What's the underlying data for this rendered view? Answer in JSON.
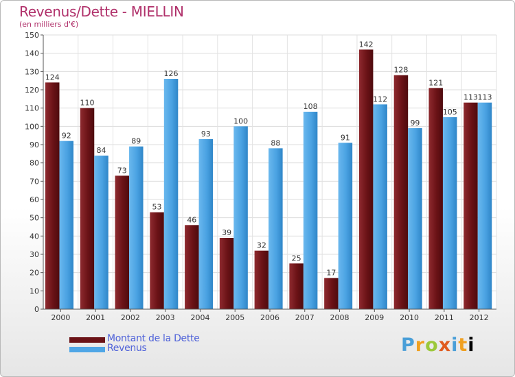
{
  "chart_data": {
    "type": "bar",
    "title": "Revenus/Dette - MIELLIN",
    "subtitle": "(en milliers d'€)",
    "categories": [
      "2000",
      "2001",
      "2002",
      "2003",
      "2004",
      "2005",
      "2006",
      "2007",
      "2008",
      "2009",
      "2010",
      "2011",
      "2012"
    ],
    "series": [
      {
        "name": "Montant de la Dette",
        "color": "#7a1a1e",
        "values": [
          124,
          110,
          73,
          53,
          46,
          39,
          32,
          25,
          17,
          142,
          128,
          121,
          113
        ]
      },
      {
        "name": "Revenus",
        "color": "#4fa6e6",
        "values": [
          92,
          84,
          89,
          126,
          93,
          100,
          88,
          108,
          91,
          112,
          99,
          105,
          113
        ]
      }
    ],
    "ylim": [
      0,
      150
    ],
    "yticks": [
      0,
      10,
      20,
      30,
      40,
      50,
      60,
      70,
      80,
      90,
      100,
      110,
      120,
      130,
      140,
      150
    ],
    "grid": true,
    "legend": "bottom-left"
  },
  "branding": {
    "logo_text": "Proxiti",
    "logo_letters": [
      "P",
      "r",
      "o",
      "x",
      "i",
      "t",
      "i"
    ]
  }
}
